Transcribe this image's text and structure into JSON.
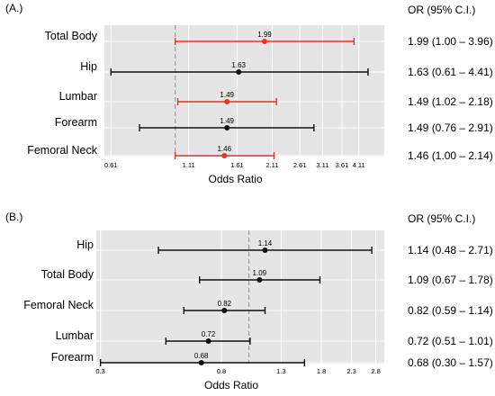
{
  "chart_data": [
    {
      "type": "forest",
      "panel_label": "(A.)",
      "xlabel": "Odds Ratio",
      "x_scale": "log",
      "xlim": [
        0.58,
        5.0
      ],
      "x_ticks": [
        0.61,
        1.11,
        1.61,
        2.11,
        2.61,
        3.11,
        3.61,
        4.11
      ],
      "x_tick_labels": [
        "0.61",
        "1.11",
        "1.61",
        "2.11",
        "2.61",
        "3.11",
        "3.61",
        "4.11"
      ],
      "reference_line": 1.0,
      "table_header": "OR (95% C.I.)",
      "rows": [
        {
          "label": "Total Body",
          "or": 1.99,
          "lower": 1.0,
          "upper": 3.96,
          "point_label": "1.99",
          "ci_text": "1.99 (1.00 – 3.96)",
          "color": "#e8332a"
        },
        {
          "label": "Hip",
          "or": 1.63,
          "lower": 0.61,
          "upper": 4.41,
          "point_label": "1.63",
          "ci_text": "1.63 (0.61 – 4.41)",
          "color": "#111111"
        },
        {
          "label": "Lumbar",
          "or": 1.49,
          "lower": 1.02,
          "upper": 2.18,
          "point_label": "1.49",
          "ci_text": "1.49 (1.02 – 2.18)",
          "color": "#e8332a"
        },
        {
          "label": "Forearm",
          "or": 1.49,
          "lower": 0.76,
          "upper": 2.91,
          "point_label": "1.49",
          "ci_text": "1.49 (0.76 – 2.91)",
          "color": "#111111"
        },
        {
          "label": "Femoral Neck",
          "or": 1.46,
          "lower": 1.0,
          "upper": 2.14,
          "point_label": "1.46",
          "ci_text": "1.46 (1.00 – 2.14)",
          "color": "#e8332a"
        }
      ]
    },
    {
      "type": "forest",
      "panel_label": "(B.)",
      "xlabel": "Odds Ratio",
      "x_scale": "log",
      "xlim": [
        0.29,
        3.0
      ],
      "x_ticks": [
        0.3,
        0.8,
        1.3,
        1.8,
        2.3,
        2.8
      ],
      "x_tick_labels": [
        "0.3",
        "0.8",
        "1.3",
        "1.8",
        "2.3",
        "2.8"
      ],
      "reference_line": 1.0,
      "table_header": "OR (95% C.I.)",
      "rows": [
        {
          "label": "Hip",
          "or": 1.14,
          "lower": 0.48,
          "upper": 2.71,
          "point_label": "1.14",
          "ci_text": "1.14 (0.48 – 2.71)",
          "color": "#111111"
        },
        {
          "label": "Total Body",
          "or": 1.09,
          "lower": 0.67,
          "upper": 1.78,
          "point_label": "1.09",
          "ci_text": "1.09 (0.67 – 1.78)",
          "color": "#111111"
        },
        {
          "label": "Femoral Neck",
          "or": 0.82,
          "lower": 0.59,
          "upper": 1.14,
          "point_label": "0.82",
          "ci_text": "0.82 (0.59 – 1.14)",
          "color": "#111111"
        },
        {
          "label": "Lumbar",
          "or": 0.72,
          "lower": 0.51,
          "upper": 1.01,
          "point_label": "0.72",
          "ci_text": "0.72 (0.51 – 1.01)",
          "color": "#111111"
        },
        {
          "label": "Forearm",
          "or": 0.68,
          "lower": 0.3,
          "upper": 1.57,
          "point_label": "0.68",
          "ci_text": "0.68 (0.30 – 1.57)",
          "color": "#111111"
        }
      ]
    }
  ],
  "colors": {
    "panel_background": "#e5e5e5",
    "grid": "#ffffff",
    "reference_line": "#9a9a9a",
    "significant": "#e8332a",
    "nonsignificant": "#111111"
  }
}
